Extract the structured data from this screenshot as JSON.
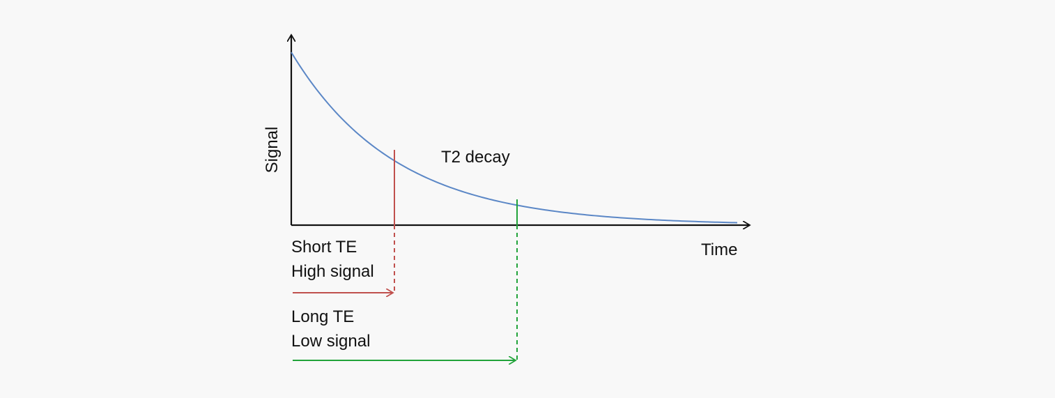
{
  "labels": {
    "y_axis": "Signal",
    "x_axis": "Time",
    "curve": "T2 decay",
    "short_te": "Short TE",
    "high_signal": "High signal",
    "long_te": "Long TE",
    "low_signal": "Low signal"
  },
  "colors": {
    "background": "#f8f8f8",
    "axes": "#111111",
    "curve": "#5b87c6",
    "short_te": "#c0504d",
    "long_te": "#21a33a"
  }
}
